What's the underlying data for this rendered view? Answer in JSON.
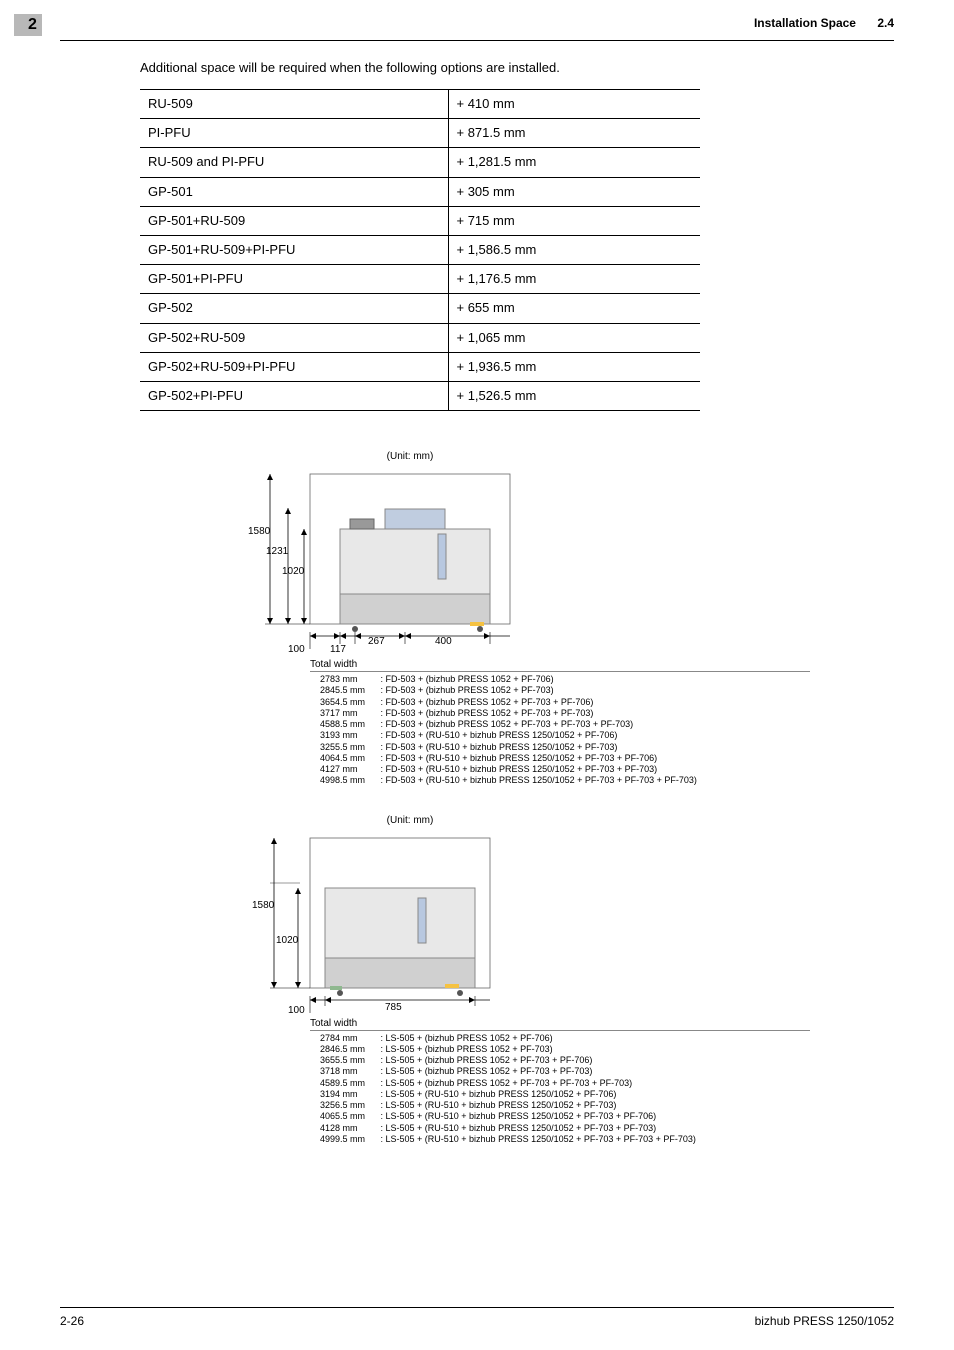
{
  "chapter_num": "2",
  "header": {
    "title": "Installation Space",
    "section": "2.4"
  },
  "intro": "Additional space will be required when the following options are installed.",
  "options_table": {
    "rows": [
      [
        "RU-509",
        "+ 410 mm"
      ],
      [
        "PI-PFU",
        "+ 871.5 mm"
      ],
      [
        "RU-509 and PI-PFU",
        "+ 1,281.5 mm"
      ],
      [
        "GP-501",
        "+ 305 mm"
      ],
      [
        "GP-501+RU-509",
        "+ 715 mm"
      ],
      [
        "GP-501+RU-509+PI-PFU",
        "+ 1,586.5 mm"
      ],
      [
        "GP-501+PI-PFU",
        "+ 1,176.5 mm"
      ],
      [
        "GP-502",
        "+ 655 mm"
      ],
      [
        "GP-502+RU-509",
        "+ 1,065 mm"
      ],
      [
        "GP-502+RU-509+PI-PFU",
        "+ 1,936.5 mm"
      ],
      [
        "GP-502+PI-PFU",
        "+ 1,526.5 mm"
      ]
    ]
  },
  "diagram1": {
    "unit": "(Unit: mm)",
    "dims": {
      "h_outer": "1580",
      "h_mid": "1231",
      "h_inner": "1020",
      "left_gap": "100",
      "g1": "117",
      "g2": "267",
      "g3": "400"
    },
    "total_width_label": "Total width",
    "configs": [
      {
        "w": "2783 mm",
        "d": "FD-503 + (bizhub PRESS 1052 + PF-706)"
      },
      {
        "w": "2845.5 mm",
        "d": "FD-503 + (bizhub PRESS 1052 + PF-703)"
      },
      {
        "w": "3654.5 mm",
        "d": "FD-503 + (bizhub PRESS 1052 + PF-703 + PF-706)"
      },
      {
        "w": "3717 mm",
        "d": "FD-503 + (bizhub PRESS 1052 + PF-703 + PF-703)"
      },
      {
        "w": "4588.5 mm",
        "d": "FD-503 + (bizhub PRESS 1052 + PF-703 + PF-703 + PF-703)"
      },
      {
        "w": "3193 mm",
        "d": "FD-503 + (RU-510 + bizhub PRESS 1250/1052 + PF-706)"
      },
      {
        "w": "3255.5 mm",
        "d": "FD-503 + (RU-510 + bizhub PRESS 1250/1052 + PF-703)"
      },
      {
        "w": "4064.5 mm",
        "d": "FD-503 + (RU-510 + bizhub PRESS 1250/1052 + PF-703 + PF-706)"
      },
      {
        "w": "4127 mm",
        "d": "FD-503 + (RU-510 + bizhub PRESS 1250/1052 + PF-703 + PF-703)"
      },
      {
        "w": "4998.5 mm",
        "d": "FD-503 + (RU-510 + bizhub PRESS 1250/1052 + PF-703 + PF-703 + PF-703)"
      }
    ]
  },
  "diagram2": {
    "unit": "(Unit: mm)",
    "dims": {
      "h_outer": "1580",
      "h_inner": "1020",
      "left_gap": "100",
      "w": "785"
    },
    "total_width_label": "Total width",
    "configs": [
      {
        "w": "2784 mm",
        "d": "LS-505 + (bizhub PRESS 1052 + PF-706)"
      },
      {
        "w": "2846.5 mm",
        "d": "LS-505 + (bizhub PRESS 1052 + PF-703)"
      },
      {
        "w": "3655.5 mm",
        "d": "LS-505 + (bizhub PRESS 1052 + PF-703 + PF-706)"
      },
      {
        "w": "3718 mm",
        "d": "LS-505 + (bizhub PRESS 1052 + PF-703 + PF-703)"
      },
      {
        "w": "4589.5 mm",
        "d": "LS-505 + (bizhub PRESS 1052 + PF-703 + PF-703 + PF-703)"
      },
      {
        "w": "3194 mm",
        "d": "LS-505 + (RU-510 + bizhub PRESS 1250/1052 + PF-706)"
      },
      {
        "w": "3256.5 mm",
        "d": "LS-505 + (RU-510 + bizhub PRESS 1250/1052 + PF-703)"
      },
      {
        "w": "4065.5 mm",
        "d": "LS-505 + (RU-510 + bizhub PRESS 1250/1052 + PF-703 + PF-706)"
      },
      {
        "w": "4128 mm",
        "d": "LS-505 + (RU-510 + bizhub PRESS 1250/1052 + PF-703 + PF-703)"
      },
      {
        "w": "4999.5 mm",
        "d": "LS-505 + (RU-510 + bizhub PRESS 1250/1052 + PF-703 + PF-703 + PF-703)"
      }
    ]
  },
  "footer": {
    "left": "2-26",
    "right": "bizhub PRESS 1250/1052"
  }
}
